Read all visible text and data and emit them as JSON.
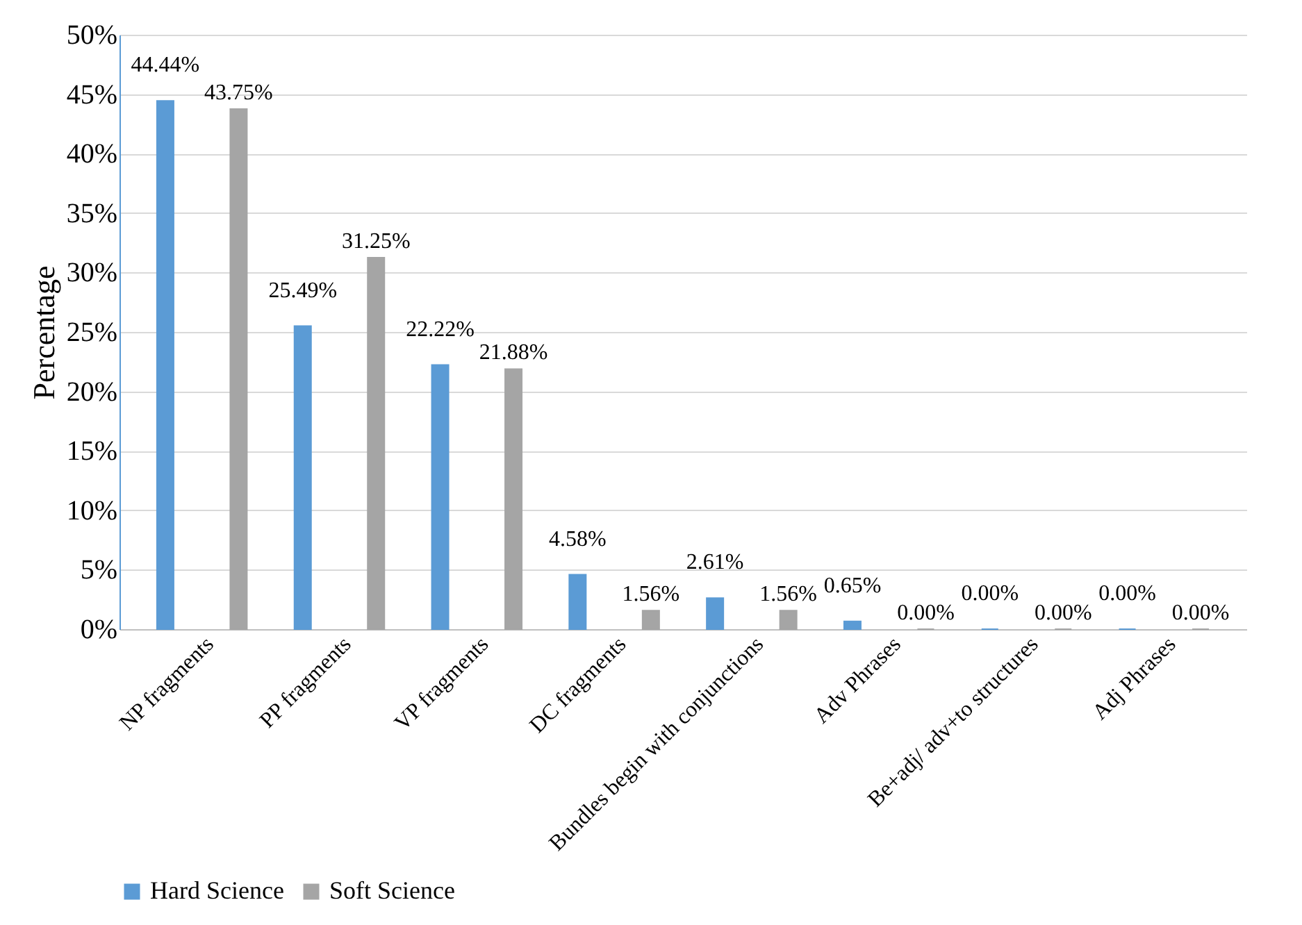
{
  "chart_data": {
    "type": "bar",
    "ylabel": "Percentage",
    "categories": [
      "NP  fragments",
      "PP  fragments",
      "VP  fragments",
      "DC  fragments",
      "Bundles begin with conjunctions",
      "Adv Phrases",
      "Be+adj/ adv+to structures",
      "Adj Phrases"
    ],
    "series": [
      {
        "name": "Hard Science",
        "color": "#5b9bd5",
        "values": [
          44.44,
          25.49,
          22.22,
          4.58,
          2.61,
          0.65,
          0.0,
          0.0
        ],
        "value_labels": [
          "44.44%",
          "25.49%",
          "22.22%",
          "4.58%",
          "2.61%",
          "0.65%",
          "0.00%",
          "0.00%"
        ]
      },
      {
        "name": "Soft Science",
        "color": "#a5a5a5",
        "values": [
          43.75,
          31.25,
          21.88,
          1.56,
          1.56,
          0.0,
          0.0,
          0.0
        ],
        "value_labels": [
          "43.75%",
          "31.25%",
          "21.88%",
          "1.56%",
          "1.56%",
          "0.00%",
          "0.00%",
          "0.00%"
        ]
      }
    ],
    "ylim": [
      0,
      50
    ],
    "yticks": [
      {
        "value": 0,
        "label": "0%"
      },
      {
        "value": 5,
        "label": "5%"
      },
      {
        "value": 10,
        "label": "10%"
      },
      {
        "value": 15,
        "label": "15%"
      },
      {
        "value": 20,
        "label": "20%"
      },
      {
        "value": 25,
        "label": "25%"
      },
      {
        "value": 30,
        "label": "30%"
      },
      {
        "value": 35,
        "label": "35%"
      },
      {
        "value": 40,
        "label": "40%"
      },
      {
        "value": 45,
        "label": "45%"
      },
      {
        "value": 50,
        "label": "50%"
      }
    ],
    "grid": "y",
    "legend": "bottom"
  }
}
